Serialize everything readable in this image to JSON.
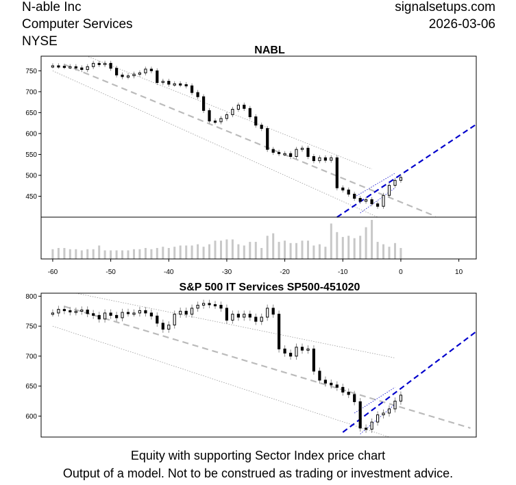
{
  "header": {
    "company": "N-able Inc",
    "sector": "Computer Services",
    "exchange": "NYSE",
    "site": "signalsetups.com",
    "date": "2026-03-06"
  },
  "footer": {
    "line1": "Equity with supporting Sector Index price chart",
    "line2": "Output of a model. Not to be construed as trading or investment advice."
  },
  "colors": {
    "trend_blue": "#0000cc",
    "trend_gray": "#bbbbbb",
    "volume_gray": "#c8c8c8",
    "candle": "#000000"
  },
  "chart_data": [
    {
      "type": "candlestick",
      "title": "NABL",
      "xlim": [
        -62,
        13
      ],
      "ylim": [
        400,
        785
      ],
      "x_ticks": [
        -60,
        -50,
        -40,
        -30,
        -20,
        -10,
        0,
        10
      ],
      "y_ticks": [
        450,
        500,
        550,
        600,
        650,
        700,
        750
      ],
      "close": [
        [
          -60,
          762
        ],
        [
          -59,
          761
        ],
        [
          -58,
          760
        ],
        [
          -57,
          760
        ],
        [
          -56,
          757
        ],
        [
          -55,
          753
        ],
        [
          -54,
          760
        ],
        [
          -53,
          768
        ],
        [
          -52,
          765
        ],
        [
          -51,
          768
        ],
        [
          -50,
          756
        ],
        [
          -49,
          740
        ],
        [
          -48,
          736
        ],
        [
          -47,
          738
        ],
        [
          -46,
          742
        ],
        [
          -45,
          745
        ],
        [
          -44,
          754
        ],
        [
          -43,
          750
        ],
        [
          -42,
          722
        ],
        [
          -41,
          725
        ],
        [
          -40,
          718
        ],
        [
          -39,
          719
        ],
        [
          -38,
          717
        ],
        [
          -37,
          714
        ],
        [
          -36,
          698
        ],
        [
          -35,
          688
        ],
        [
          -34,
          655
        ],
        [
          -33,
          630
        ],
        [
          -32,
          628
        ],
        [
          -31,
          636
        ],
        [
          -30,
          645
        ],
        [
          -29,
          658
        ],
        [
          -28,
          668
        ],
        [
          -27,
          660
        ],
        [
          -26,
          640
        ],
        [
          -25,
          620
        ],
        [
          -24,
          612
        ],
        [
          -23,
          562
        ],
        [
          -22,
          555
        ],
        [
          -21,
          552
        ],
        [
          -20,
          552
        ],
        [
          -19,
          545
        ],
        [
          -18,
          562
        ],
        [
          -17,
          565
        ],
        [
          -16,
          545
        ],
        [
          -15,
          535
        ],
        [
          -14,
          542
        ],
        [
          -13,
          536
        ],
        [
          -12,
          542
        ],
        [
          -11,
          470
        ],
        [
          -10,
          465
        ],
        [
          -9,
          455
        ],
        [
          -8,
          445
        ],
        [
          -7,
          438
        ],
        [
          -6,
          442
        ],
        [
          -5,
          432
        ],
        [
          -4,
          426
        ],
        [
          -3,
          452
        ],
        [
          -2,
          476
        ],
        [
          -1,
          488
        ],
        [
          0,
          495
        ]
      ],
      "volume": [
        [
          -60,
          8
        ],
        [
          -59,
          9
        ],
        [
          -58,
          9
        ],
        [
          -57,
          8
        ],
        [
          -56,
          8
        ],
        [
          -55,
          7
        ],
        [
          -54,
          8
        ],
        [
          -53,
          8
        ],
        [
          -52,
          11
        ],
        [
          -51,
          7
        ],
        [
          -50,
          7
        ],
        [
          -49,
          7
        ],
        [
          -48,
          7
        ],
        [
          -47,
          7
        ],
        [
          -46,
          8
        ],
        [
          -45,
          8
        ],
        [
          -44,
          9
        ],
        [
          -43,
          8
        ],
        [
          -42,
          9
        ],
        [
          -41,
          10
        ],
        [
          -40,
          9
        ],
        [
          -39,
          10
        ],
        [
          -38,
          11
        ],
        [
          -37,
          11
        ],
        [
          -36,
          11
        ],
        [
          -35,
          12
        ],
        [
          -34,
          10
        ],
        [
          -33,
          12
        ],
        [
          -32,
          15
        ],
        [
          -31,
          15
        ],
        [
          -30,
          16
        ],
        [
          -29,
          16
        ],
        [
          -28,
          12
        ],
        [
          -27,
          11
        ],
        [
          -26,
          14
        ],
        [
          -25,
          14
        ],
        [
          -24,
          9
        ],
        [
          -23,
          19
        ],
        [
          -22,
          21
        ],
        [
          -21,
          14
        ],
        [
          -20,
          15
        ],
        [
          -19,
          13
        ],
        [
          -18,
          13
        ],
        [
          -17,
          15
        ],
        [
          -16,
          15
        ],
        [
          -15,
          11
        ],
        [
          -14,
          12
        ],
        [
          -13,
          10
        ],
        [
          -12,
          29
        ],
        [
          -11,
          22
        ],
        [
          -10,
          18
        ],
        [
          -9,
          19
        ],
        [
          -8,
          17
        ],
        [
          -7,
          19
        ],
        [
          -6,
          26
        ],
        [
          -5,
          32
        ],
        [
          -4,
          14
        ],
        [
          -3,
          12
        ],
        [
          -2,
          10
        ],
        [
          -1,
          13
        ],
        [
          0,
          9
        ]
      ],
      "upper_channel": [
        [
          -55,
          790
        ],
        [
          -5,
          515
        ]
      ],
      "lower_channel": [
        [
          -60,
          750
        ],
        [
          -4,
          400
        ]
      ],
      "regression": [
        [
          -58,
          765
        ],
        [
          6,
          402
        ]
      ],
      "blue_trend": [
        [
          -11,
          400
        ],
        [
          13,
          622
        ]
      ],
      "blue_channel_upper": [
        [
          -8,
          448
        ],
        [
          -1,
          505
        ]
      ],
      "blue_channel_lower": [
        [
          -7,
          410
        ],
        [
          -1,
          470
        ]
      ]
    },
    {
      "type": "candlestick",
      "title": "S&P 500 IT Services SP500-451020",
      "xlim": [
        -62,
        13
      ],
      "ylim": [
        565,
        805
      ],
      "y_ticks": [
        600,
        650,
        700,
        750,
        800
      ],
      "close": [
        [
          -60,
          772
        ],
        [
          -59,
          778
        ],
        [
          -58,
          776
        ],
        [
          -57,
          774
        ],
        [
          -56,
          775
        ],
        [
          -55,
          777
        ],
        [
          -54,
          771
        ],
        [
          -53,
          768
        ],
        [
          -52,
          762
        ],
        [
          -51,
          772
        ],
        [
          -50,
          768
        ],
        [
          -49,
          764
        ],
        [
          -48,
          773
        ],
        [
          -47,
          772
        ],
        [
          -46,
          772
        ],
        [
          -45,
          776
        ],
        [
          -44,
          772
        ],
        [
          -43,
          767
        ],
        [
          -42,
          755
        ],
        [
          -41,
          745
        ],
        [
          -40,
          752
        ],
        [
          -39,
          770
        ],
        [
          -38,
          775
        ],
        [
          -37,
          770
        ],
        [
          -36,
          780
        ],
        [
          -35,
          785
        ],
        [
          -34,
          788
        ],
        [
          -33,
          786
        ],
        [
          -32,
          785
        ],
        [
          -31,
          780
        ],
        [
          -30,
          760
        ],
        [
          -29,
          770
        ],
        [
          -28,
          765
        ],
        [
          -27,
          770
        ],
        [
          -26,
          765
        ],
        [
          -25,
          758
        ],
        [
          -24,
          765
        ],
        [
          -23,
          780
        ],
        [
          -22,
          770
        ],
        [
          -21,
          712
        ],
        [
          -20,
          705
        ],
        [
          -19,
          700
        ],
        [
          -18,
          715
        ],
        [
          -17,
          710
        ],
        [
          -16,
          712
        ],
        [
          -15,
          675
        ],
        [
          -14,
          660
        ],
        [
          -13,
          655
        ],
        [
          -12,
          652
        ],
        [
          -11,
          648
        ],
        [
          -10,
          640
        ],
        [
          -9,
          636
        ],
        [
          -8,
          624
        ],
        [
          -7,
          580
        ],
        [
          -6,
          578
        ],
        [
          -5,
          590
        ],
        [
          -4,
          602
        ],
        [
          -3,
          605
        ],
        [
          -2,
          612
        ],
        [
          -1,
          625
        ],
        [
          0,
          635
        ]
      ],
      "upper_channel": [
        [
          -56,
          805
        ],
        [
          -1,
          697
        ]
      ],
      "lower_channel": [
        [
          -60,
          750
        ],
        [
          -2,
          565
        ]
      ],
      "regression": [
        [
          -58,
          783
        ],
        [
          12,
          580
        ]
      ],
      "blue_trend": [
        [
          -10,
          573
        ],
        [
          13,
          741
        ]
      ],
      "blue_channel_upper": [
        [
          -8,
          605
        ],
        [
          -1,
          648
        ]
      ],
      "blue_channel_lower": [
        [
          -7,
          570
        ],
        [
          -1,
          620
        ]
      ]
    }
  ]
}
